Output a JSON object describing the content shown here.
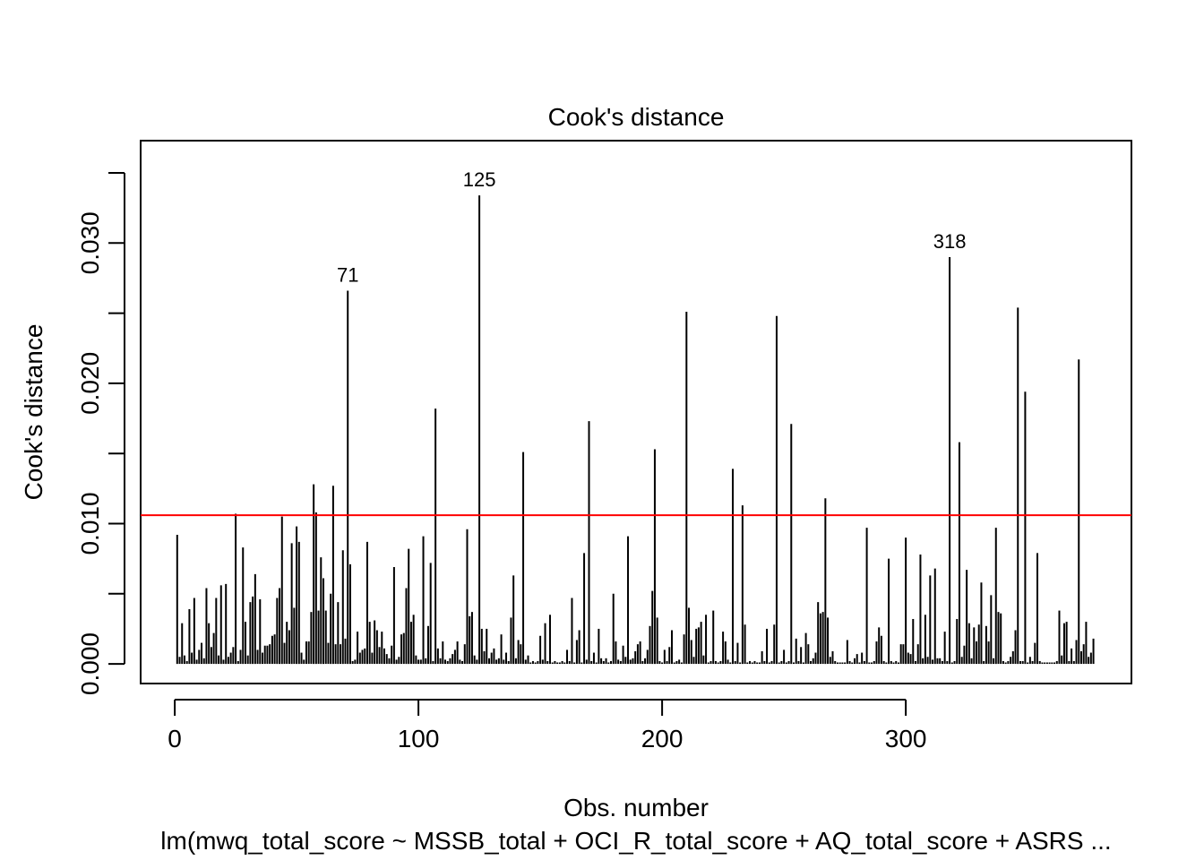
{
  "chart_data": {
    "type": "bar",
    "title": "Cook's distance",
    "xlabel": "Obs. number",
    "ylabel": "Cook's distance",
    "subtitle": "lm(mwq_total_score ~ MSSB_total + OCI_R_total_score + AQ_total_score + ASRS ...",
    "color": "#000000",
    "xlim": [
      -14,
      392.6
    ],
    "ylim": [
      -0.0014,
      0.0373
    ],
    "xticks": [
      0,
      100,
      200,
      300
    ],
    "yticks": [
      {
        "value": 0,
        "label": "0.000"
      },
      {
        "value": 0.01,
        "label": "0.010"
      },
      {
        "value": 0.02,
        "label": "0.020"
      },
      {
        "value": 0.03,
        "label": "0.030"
      }
    ],
    "yticks_unlabeled": [
      0.005,
      0.015,
      0.025,
      0.035
    ],
    "threshold": 0.0106,
    "threshold_color": "#ff0000",
    "annotations": [
      {
        "text": "71",
        "x": 71
      },
      {
        "text": "125",
        "x": 125
      },
      {
        "text": "318",
        "x": 318
      }
    ],
    "x": [
      1,
      2,
      3,
      4,
      5,
      6,
      7,
      8,
      9,
      10,
      11,
      12,
      13,
      14,
      15,
      16,
      17,
      18,
      19,
      20,
      21,
      22,
      23,
      24,
      25,
      26,
      27,
      28,
      29,
      30,
      31,
      32,
      33,
      34,
      35,
      36,
      37,
      38,
      39,
      40,
      41,
      42,
      43,
      44,
      45,
      46,
      47,
      48,
      49,
      50,
      51,
      52,
      53,
      54,
      55,
      56,
      57,
      58,
      59,
      60,
      61,
      62,
      63,
      64,
      65,
      66,
      67,
      68,
      69,
      70,
      71,
      72,
      73,
      74,
      75,
      76,
      77,
      78,
      79,
      80,
      81,
      82,
      83,
      84,
      85,
      86,
      87,
      88,
      89,
      90,
      91,
      92,
      93,
      94,
      95,
      96,
      97,
      98,
      99,
      100,
      101,
      102,
      103,
      104,
      105,
      106,
      107,
      108,
      109,
      110,
      111,
      112,
      113,
      114,
      115,
      116,
      117,
      118,
      119,
      120,
      121,
      122,
      123,
      124,
      125,
      126,
      127,
      128,
      129,
      130,
      131,
      132,
      133,
      134,
      135,
      136,
      137,
      138,
      139,
      140,
      141,
      142,
      143,
      144,
      145,
      146,
      147,
      148,
      149,
      150,
      151,
      152,
      153,
      154,
      155,
      156,
      157,
      158,
      159,
      160,
      161,
      162,
      163,
      164,
      165,
      166,
      167,
      168,
      169,
      170,
      171,
      172,
      173,
      174,
      175,
      176,
      177,
      178,
      179,
      180,
      181,
      182,
      183,
      184,
      185,
      186,
      187,
      188,
      189,
      190,
      191,
      192,
      193,
      194,
      195,
      196,
      197,
      198,
      199,
      200,
      201,
      202,
      203,
      204,
      205,
      206,
      207,
      208,
      209,
      210,
      211,
      212,
      213,
      214,
      215,
      216,
      217,
      218,
      219,
      220,
      221,
      222,
      223,
      224,
      225,
      226,
      227,
      228,
      229,
      230,
      231,
      232,
      233,
      234,
      235,
      236,
      237,
      238,
      239,
      240,
      241,
      242,
      243,
      244,
      245,
      246,
      247,
      248,
      249,
      250,
      251,
      252,
      253,
      254,
      255,
      256,
      257,
      258,
      259,
      260,
      261,
      262,
      263,
      264,
      265,
      266,
      267,
      268,
      269,
      270,
      271,
      272,
      273,
      274,
      275,
      276,
      277,
      278,
      279,
      280,
      281,
      282,
      283,
      284,
      285,
      286,
      287,
      288,
      289,
      290,
      291,
      292,
      293,
      294,
      295,
      296,
      297,
      298,
      299,
      300,
      301,
      302,
      303,
      304,
      305,
      306,
      307,
      308,
      309,
      310,
      311,
      312,
      313,
      314,
      315,
      316,
      317,
      318,
      319,
      320,
      321,
      322,
      323,
      324,
      325,
      326,
      327,
      328,
      329,
      330,
      331,
      332,
      333,
      334,
      335,
      336,
      337,
      338,
      339,
      340,
      341,
      342,
      343,
      344,
      345,
      346,
      347,
      348,
      349,
      350,
      351,
      352,
      353,
      354,
      355,
      356,
      357,
      358,
      359,
      360,
      361,
      362,
      363,
      364,
      365,
      366,
      367,
      368,
      369,
      370,
      371,
      372,
      373,
      374,
      375,
      376,
      377
    ],
    "values": [
      0.0092,
      0.0005,
      0.0029,
      0.0006,
      0.0002,
      0.0039,
      0.0008,
      0.0047,
      0.0003,
      0.001,
      0.0015,
      0.0004,
      0.0054,
      0.0029,
      0.0012,
      0.0022,
      0.0047,
      0.0006,
      0.0056,
      0.0003,
      0.0057,
      0.0005,
      0.0008,
      0.0012,
      0.0107,
      0.0002,
      0.001,
      0.0083,
      0.003,
      0.0006,
      0.0044,
      0.0048,
      0.0064,
      0.001,
      0.0046,
      0.0008,
      0.0013,
      0.0013,
      0.0014,
      0.002,
      0.0021,
      0.0047,
      0.0054,
      0.0105,
      0.0015,
      0.003,
      0.0024,
      0.0086,
      0.004,
      0.0098,
      0.0087,
      0.0008,
      0.0003,
      0.0016,
      0.0016,
      0.0037,
      0.0128,
      0.0108,
      0.0038,
      0.0076,
      0.0061,
      0.0038,
      0.0015,
      0.005,
      0.0127,
      0.0014,
      0.0044,
      0.0014,
      0.0081,
      0.0018,
      0.0266,
      0.0071,
      0.0002,
      0.0003,
      0.0023,
      0.0008,
      0.001,
      0.0011,
      0.0087,
      0.003,
      0.0008,
      0.0031,
      0.0024,
      0.0012,
      0.0023,
      0.0011,
      0.0007,
      0.0004,
      0.0013,
      0.0069,
      0.0003,
      0.0005,
      0.0021,
      0.0022,
      0.0054,
      0.0082,
      0.003,
      0.0035,
      0.0006,
      0.0003,
      0.0003,
      0.0091,
      0.0004,
      0.0027,
      0.0072,
      0.0002,
      0.0182,
      0.0011,
      0.0004,
      0.0016,
      0.0003,
      0.0002,
      0.0004,
      0.0007,
      0.001,
      0.0016,
      0.0003,
      0.0002,
      0.0014,
      0.0096,
      0.0034,
      0.0037,
      0.0006,
      0.0003,
      0.0334,
      0.0025,
      0.0009,
      0.0025,
      0.0004,
      0.0008,
      0.0011,
      0.0003,
      0.0004,
      0.0021,
      0.0003,
      0.0008,
      0.0002,
      0.0033,
      0.0063,
      0.0004,
      0.0017,
      0.0014,
      0.0151,
      0.0003,
      0.0006,
      0.0001,
      0.0002,
      0.0001,
      0.0002,
      0.002,
      0.0003,
      0.0029,
      0.0002,
      0.0035,
      0.0001,
      0.0002,
      0.0001,
      0.0001,
      0.0002,
      0.0001,
      0.001,
      0.0002,
      0.0047,
      0.0001,
      0.0017,
      0.0024,
      0.0001,
      0.0079,
      0.0003,
      0.0173,
      0.0002,
      0.0008,
      0.0001,
      0.0025,
      0.0004,
      0.0002,
      0.0004,
      0.0001,
      0.0002,
      0.005,
      0.0016,
      0.0003,
      0.0002,
      0.0013,
      0.0005,
      0.0091,
      0.0003,
      0.0004,
      0.0009,
      0.0014,
      0.0016,
      0.0002,
      0.0004,
      0.001,
      0.0027,
      0.0052,
      0.0153,
      0.0033,
      0.0002,
      0.0001,
      0.001,
      0.0002,
      0.0012,
      0.0024,
      0.0001,
      0.0002,
      0.0003,
      0.0001,
      0.0021,
      0.0251,
      0.004,
      0.0017,
      0.0005,
      0.0025,
      0.0026,
      0.003,
      0.0006,
      0.0035,
      0.0001,
      0.0002,
      0.0038,
      0.0002,
      0.0001,
      0.0002,
      0.0023,
      0.0016,
      0.0003,
      0.0001,
      0.0139,
      0.0002,
      0.0015,
      0.0001,
      0.0113,
      0.0028,
      0.0001,
      0.0002,
      0.0001,
      0.0002,
      0.0001,
      0.0001,
      0.0009,
      0.0002,
      0.0025,
      0.0001,
      0.0002,
      0.0028,
      0.0248,
      0.0001,
      0.0002,
      0.001,
      0.0001,
      0.0002,
      0.0171,
      0.0001,
      0.0018,
      0.0002,
      0.0012,
      0.0001,
      0.0022,
      0.0014,
      0.0002,
      0.0004,
      0.0008,
      0.0044,
      0.0036,
      0.0037,
      0.0118,
      0.0033,
      0.0005,
      0.0009,
      0.0002,
      0.0001,
      0.0001,
      0.0001,
      0.0001,
      0.0017,
      0.0002,
      0.0001,
      0.0004,
      0.0007,
      0.0001,
      0.0008,
      0.0002,
      0.0097,
      0.0001,
      0.0001,
      0.0002,
      0.0016,
      0.0026,
      0.002,
      0.0002,
      0.0001,
      0.0075,
      0.0002,
      0.0001,
      0.0002,
      0.0001,
      0.0014,
      0.0014,
      0.009,
      0.0008,
      0.0007,
      0.0032,
      0.0002,
      0.0014,
      0.0078,
      0.0004,
      0.0035,
      0.0005,
      0.0063,
      0.0003,
      0.0068,
      0.0004,
      0.0004,
      0.0002,
      0.0023,
      0.0002,
      0.029,
      0.0001,
      0.0002,
      0.0032,
      0.0158,
      0.0005,
      0.0013,
      0.0067,
      0.0029,
      0.0004,
      0.0026,
      0.0016,
      0.0028,
      0.0058,
      0.0002,
      0.0027,
      0.0016,
      0.0049,
      0.0004,
      0.0097,
      0.0037,
      0.0036,
      0.0002,
      0.0001,
      0.0002,
      0.0005,
      0.0009,
      0.0024,
      0.0254,
      0.0002,
      0.0002,
      0.0194,
      0.0001,
      0.0005,
      0.0002,
      0.0015,
      0.0079,
      0.0002,
      0.0001,
      0.0001,
      0.0001,
      0.0001,
      0.0001,
      0.0001,
      0.0002,
      0.0038,
      0.0006,
      0.0029,
      0.003,
      0.0002,
      0.0011,
      0.0002,
      0.0017,
      0.0217,
      0.0009,
      0.0014,
      0.003,
      0.0005,
      0.0008,
      0.0018
    ]
  }
}
